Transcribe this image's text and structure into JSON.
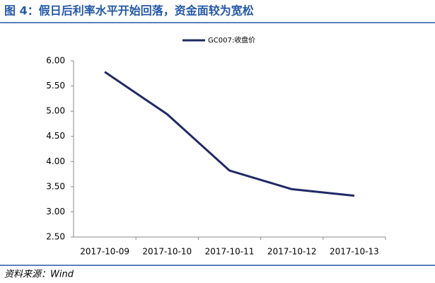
{
  "chart_data": {
    "type": "line",
    "title": "图 4：假日后利率水平开始回落，资金面较为宽松",
    "source": "资料来源：Wind",
    "categories": [
      "2017-10-09",
      "2017-10-10",
      "2017-10-11",
      "2017-10-12",
      "2017-10-13"
    ],
    "series": [
      {
        "name": "GC007:收盘价",
        "color": "#1f2a66",
        "values": [
          5.78,
          4.94,
          3.82,
          3.45,
          3.32
        ]
      }
    ],
    "ylim": [
      2.5,
      6.0
    ],
    "yticks": [
      {
        "value": 2.5,
        "label": "2.50"
      },
      {
        "value": 3.0,
        "label": "3.00"
      },
      {
        "value": 3.5,
        "label": "3.50"
      },
      {
        "value": 4.0,
        "label": "4.00"
      },
      {
        "value": 4.5,
        "label": "4.50"
      },
      {
        "value": 5.0,
        "label": "5.00"
      },
      {
        "value": 5.5,
        "label": "5.50"
      },
      {
        "value": 6.0,
        "label": "6.00"
      }
    ],
    "grid": false
  }
}
